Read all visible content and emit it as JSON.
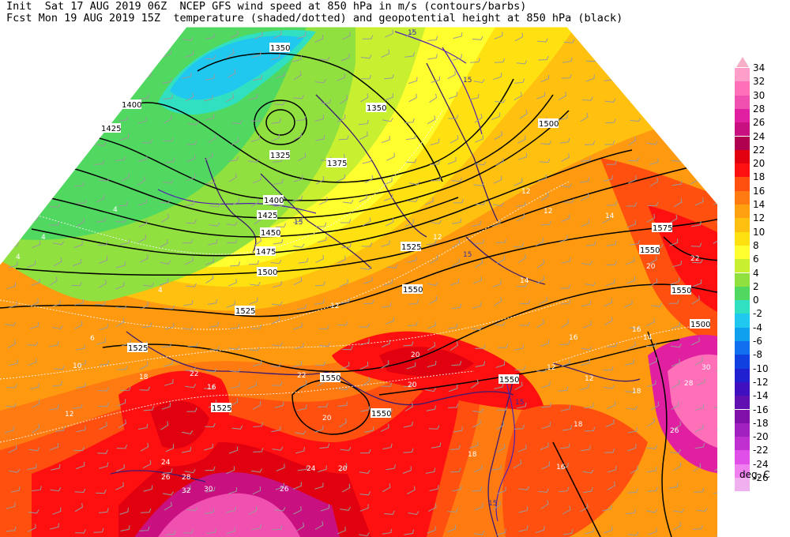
{
  "header": {
    "line1": "Init  Sat 17 AUG 2019 06Z  NCEP GFS wind speed at 850 hPa in m/s (contours/barbs)",
    "line2": "Fcst Mon 19 AUG 2019 15Z  temperature (shaded/dotted) and geopotential height at 850 hPa (black)"
  },
  "legend": {
    "units": "deg. C",
    "labels": [
      "34",
      "32",
      "30",
      "28",
      "26",
      "24",
      "22",
      "20",
      "18",
      "16",
      "14",
      "12",
      "10",
      "8",
      "6",
      "4",
      "2",
      "0",
      "-2",
      "-4",
      "-6",
      "-8",
      "-10",
      "-12",
      "-14",
      "-16",
      "-18",
      "-20",
      "-22",
      "-24",
      "-26"
    ],
    "colors": [
      "#ff9ec8",
      "#ff70b8",
      "#f050b0",
      "#e020a0",
      "#c81080",
      "#b00050",
      "#e00010",
      "#ff1010",
      "#ff5010",
      "#ff7a10",
      "#ffa010",
      "#ffc010",
      "#ffe010",
      "#ffff30",
      "#c8f030",
      "#90e040",
      "#50d860",
      "#30e0c0",
      "#20c8f0",
      "#10a0f0",
      "#1070f0",
      "#1040e0",
      "#2020d0",
      "#4010c0",
      "#6010b0",
      "#8010a8",
      "#a020c0",
      "#c030d0",
      "#e050e8",
      "#f080f0",
      "#f0b0f0"
    ]
  },
  "map": {
    "height_labels": [
      {
        "text": "1350"
      },
      {
        "text": "1400"
      },
      {
        "text": "1425"
      },
      {
        "text": "1325"
      },
      {
        "text": "1375"
      },
      {
        "text": "1350"
      },
      {
        "text": "1400"
      },
      {
        "text": "1425"
      },
      {
        "text": "1450"
      },
      {
        "text": "1475"
      },
      {
        "text": "1500"
      },
      {
        "text": "1525"
      },
      {
        "text": "1525"
      },
      {
        "text": "1500"
      },
      {
        "text": "1550"
      },
      {
        "text": "1575"
      },
      {
        "text": "1550"
      },
      {
        "text": "1550"
      },
      {
        "text": "1500"
      },
      {
        "text": "1550"
      },
      {
        "text": "1550"
      },
      {
        "text": "1525"
      },
      {
        "text": "1550"
      },
      {
        "text": "1525"
      }
    ],
    "temp_labels": [
      {
        "text": "4"
      },
      {
        "text": "4"
      },
      {
        "text": "4"
      },
      {
        "text": "4"
      },
      {
        "text": "6"
      },
      {
        "text": "10"
      },
      {
        "text": "12"
      },
      {
        "text": "12"
      },
      {
        "text": "12"
      },
      {
        "text": "12"
      },
      {
        "text": "14"
      },
      {
        "text": "12"
      },
      {
        "text": "16"
      },
      {
        "text": "14"
      },
      {
        "text": "20"
      },
      {
        "text": "22"
      },
      {
        "text": "20"
      },
      {
        "text": "20"
      },
      {
        "text": "18"
      },
      {
        "text": "16"
      },
      {
        "text": "22"
      },
      {
        "text": "18"
      },
      {
        "text": "24"
      },
      {
        "text": "26"
      },
      {
        "text": "28"
      },
      {
        "text": "30"
      },
      {
        "text": "26"
      },
      {
        "text": "16"
      },
      {
        "text": "18"
      },
      {
        "text": "20"
      },
      {
        "text": "22"
      },
      {
        "text": "12"
      },
      {
        "text": "12"
      },
      {
        "text": "14"
      },
      {
        "text": "16"
      },
      {
        "text": "18"
      },
      {
        "text": "20"
      },
      {
        "text": "24"
      },
      {
        "text": "26"
      },
      {
        "text": "28"
      },
      {
        "text": "30"
      },
      {
        "text": "32"
      }
    ],
    "wind_labels": [
      {
        "text": "15"
      },
      {
        "text": "15"
      },
      {
        "text": "15"
      },
      {
        "text": "15"
      },
      {
        "text": "15"
      },
      {
        "text": "15"
      }
    ]
  }
}
